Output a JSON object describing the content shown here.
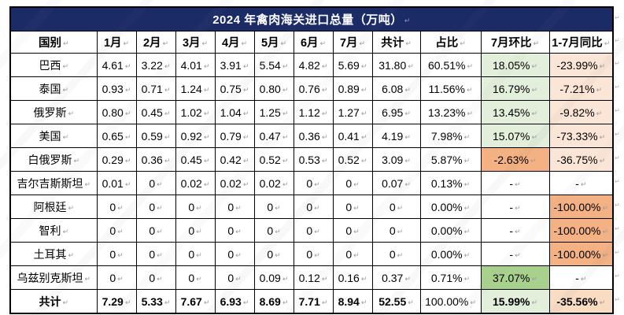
{
  "title": "2024 年禽肉海关进口总量（万吨）",
  "marks": {
    "cell_end": "↵"
  },
  "colors": {
    "header_navy": "#1b2b66",
    "green_light": "#e2efda",
    "green_medium": "#a9d18e",
    "pink_light": "#fbe5d6",
    "orange_medium": "#f4b183",
    "pink_deep": "#fadcc3",
    "border_black": "#000000"
  },
  "columns": [
    "国别",
    "1月",
    "2月",
    "3月",
    "4月",
    "5月",
    "6月",
    "7月",
    "共计",
    "占比",
    "7月环比",
    "1-7月同比"
  ],
  "chart_data": {
    "type": "table",
    "title": "2024 年禽肉海关进口总量（万吨）",
    "categories": [
      "1月",
      "2月",
      "3月",
      "4月",
      "5月",
      "6月",
      "7月"
    ],
    "series_note": "monthly poultry import volume by country, 10k tons"
  },
  "rows": [
    {
      "country": "巴西",
      "months": [
        "4.61",
        "3.22",
        "4.01",
        "3.91",
        "5.54",
        "4.82",
        "5.69"
      ],
      "total": "31.80",
      "share": "60.51%",
      "mom": {
        "text": "18.05%",
        "style": "green_light"
      },
      "yoy": {
        "text": "-23.99%",
        "style": "pink_light"
      },
      "bold": false
    },
    {
      "country": "泰国",
      "months": [
        "0.93",
        "0.71",
        "1.24",
        "0.75",
        "0.80",
        "0.76",
        "0.89"
      ],
      "total": "6.08",
      "share": "11.56%",
      "mom": {
        "text": "16.79%",
        "style": "green_light"
      },
      "yoy": {
        "text": "-7.21%",
        "style": "pink_light"
      },
      "bold": false
    },
    {
      "country": "俄罗斯",
      "months": [
        "0.80",
        "0.45",
        "1.02",
        "1.04",
        "1.25",
        "1.12",
        "1.27"
      ],
      "total": "6.95",
      "share": "13.23%",
      "mom": {
        "text": "13.45%",
        "style": "green_light"
      },
      "yoy": {
        "text": "-9.82%",
        "style": "pink_light"
      },
      "bold": false
    },
    {
      "country": "美国",
      "months": [
        "0.65",
        "0.59",
        "0.92",
        "0.79",
        "0.47",
        "0.36",
        "0.41"
      ],
      "total": "4.19",
      "share": "7.98%",
      "mom": {
        "text": "15.07%",
        "style": "green_light"
      },
      "yoy": {
        "text": "-73.33%",
        "style": "pink_light"
      },
      "bold": false
    },
    {
      "country": "白俄罗斯",
      "months": [
        "0.29",
        "0.36",
        "0.45",
        "0.42",
        "0.52",
        "0.53",
        "0.52"
      ],
      "total": "3.09",
      "share": "5.87%",
      "mom": {
        "text": "-2.63%",
        "style": "orange_medium"
      },
      "yoy": {
        "text": "-36.75%",
        "style": "pink_light"
      },
      "bold": false
    },
    {
      "country": "吉尔吉斯斯坦",
      "months": [
        "0.01",
        "0",
        "0.02",
        "0.02",
        "0.02",
        "0",
        "0"
      ],
      "total": "0.07",
      "share": "0.13%",
      "mom": {
        "text": "-",
        "style": "none"
      },
      "yoy": {
        "text": "-",
        "style": "none"
      },
      "bold": false
    },
    {
      "country": "阿根廷",
      "months": [
        "0",
        "0",
        "0",
        "0",
        "0",
        "0",
        "0"
      ],
      "total": "0",
      "share": "0.00%",
      "mom": {
        "text": "-",
        "style": "none"
      },
      "yoy": {
        "text": "-100.00%",
        "style": "orange_medium"
      },
      "bold": false
    },
    {
      "country": "智利",
      "months": [
        "0",
        "0",
        "0",
        "0",
        "0",
        "0",
        "0"
      ],
      "total": "0",
      "share": "0.00%",
      "mom": {
        "text": "-",
        "style": "none"
      },
      "yoy": {
        "text": "-100.00%",
        "style": "orange_medium"
      },
      "bold": false
    },
    {
      "country": "土耳其",
      "months": [
        "0",
        "0",
        "0",
        "0",
        "0",
        "0",
        "0"
      ],
      "total": "0",
      "share": "0.00%",
      "mom": {
        "text": "-",
        "style": "none"
      },
      "yoy": {
        "text": "-100.00%",
        "style": "orange_medium"
      },
      "bold": false
    },
    {
      "country": "乌兹别克斯坦",
      "months": [
        "0",
        "0",
        "0",
        "0",
        "0.09",
        "0.12",
        "0.16"
      ],
      "total": "0.37",
      "share": "0.71%",
      "mom": {
        "text": "37.07%",
        "style": "green_medium"
      },
      "yoy": {
        "text": "-",
        "style": "none"
      },
      "bold": false
    },
    {
      "country": "共计",
      "months": [
        "7.29",
        "5.33",
        "7.67",
        "6.93",
        "8.69",
        "7.71",
        "8.94"
      ],
      "total": "52.55",
      "share": "100.00%",
      "mom": {
        "text": "15.99%",
        "style": "green_light"
      },
      "yoy": {
        "text": "-35.56%",
        "style": "pink_deep"
      },
      "bold": true
    }
  ]
}
